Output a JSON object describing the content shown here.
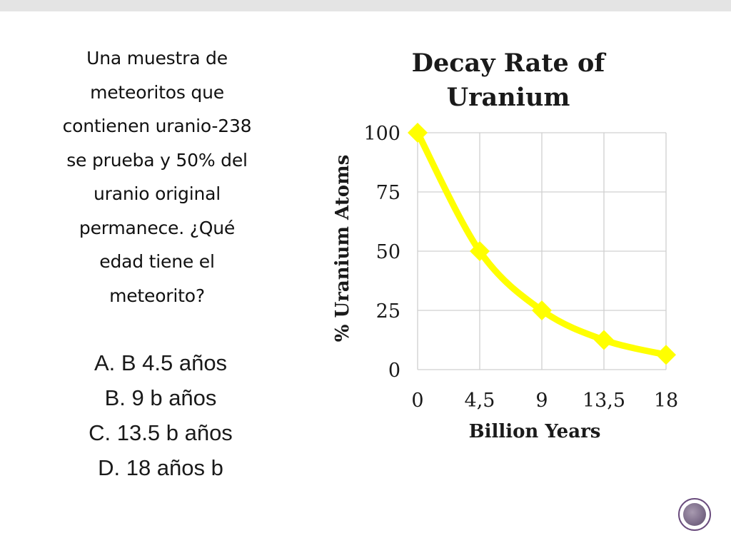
{
  "question": {
    "text": "Una muestra de\nmeteoritos que\ncontienen uranio-238\nse prueba y 50% del\nuranio original\npermanece. ¿Qué\nedad tiene el\nmeteorito?"
  },
  "options": [
    "A. B 4.5 años",
    "B. 9 b años",
    "C. 13.5 b años",
    "D. 18 años b"
  ],
  "colors": {
    "series": "#ffff00",
    "grid": "#d0d0d0",
    "text": "#1a1a1a"
  },
  "chart_data": {
    "type": "line",
    "title": "Decay Rate of\nUranium",
    "xlabel": "Billion Years",
    "ylabel": "% Uranium Atoms",
    "x_ticks": [
      "0",
      "4,5",
      "9",
      "13,5",
      "18"
    ],
    "y_ticks": [
      "0",
      "25",
      "50",
      "75",
      "100"
    ],
    "ylim": [
      0,
      100
    ],
    "xlim": [
      0,
      18
    ],
    "grid": true,
    "smooth": true,
    "marker": "diamond",
    "series": [
      {
        "x": [
          0,
          4.5,
          9,
          13.5,
          18
        ],
        "values": [
          100,
          50,
          25,
          12.5,
          6.25
        ]
      }
    ]
  }
}
